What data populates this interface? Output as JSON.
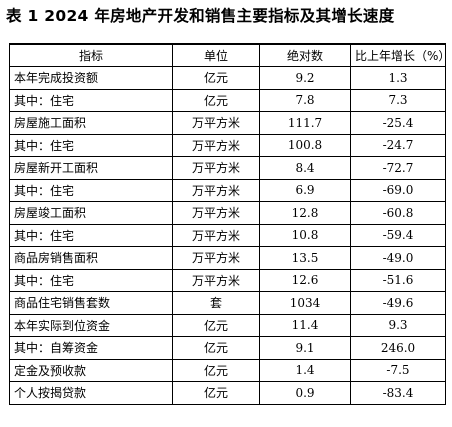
{
  "title": "表 1  2024 年房地产开发和销售主要指标及其增长速度",
  "headers": [
    "指标",
    "单位",
    "绝对数",
    "比上年增长（%）"
  ],
  "rows": [
    {
      "name": "本年完成投资额",
      "unit": "亿元",
      "value": "9.2",
      "growth": "1.3",
      "indent": 0
    },
    {
      "name": "其中：住宅",
      "unit": "亿元",
      "value": "7.8",
      "growth": "7.3",
      "indent": 1
    },
    {
      "name": "房屋施工面积",
      "unit": "万平方米",
      "value": "111.7",
      "growth": "-25.4",
      "indent": 0
    },
    {
      "name": "其中：住宅",
      "unit": "万平方米",
      "value": "100.8",
      "growth": "-24.7",
      "indent": 1
    },
    {
      "name": "房屋新开工面积",
      "unit": "万平方米",
      "value": "8.4",
      "growth": "-72.7",
      "indent": 0
    },
    {
      "name": "其中：住宅",
      "unit": "万平方米",
      "value": "6.9",
      "growth": "-69.0",
      "indent": 1
    },
    {
      "name": "房屋竣工面积",
      "unit": "万平方米",
      "value": "12.8",
      "growth": "-60.8",
      "indent": 0
    },
    {
      "name": "其中：住宅",
      "unit": "万平方米",
      "value": "10.8",
      "growth": "-59.4",
      "indent": 1
    },
    {
      "name": "商品房销售面积",
      "unit": "万平方米",
      "value": "13.5",
      "growth": "-49.0",
      "indent": 0
    },
    {
      "name": "其中：住宅",
      "unit": "万平方米",
      "value": "12.6",
      "growth": "-51.6",
      "indent": 1
    },
    {
      "name": "商品住宅销售套数",
      "unit": "套",
      "value": "1034",
      "growth": "-49.6",
      "indent": 0
    },
    {
      "name": "本年实际到位资金",
      "unit": "亿元",
      "value": "11.4",
      "growth": "9.3",
      "indent": 0
    },
    {
      "name": "其中：自筹资金",
      "unit": "亿元",
      "value": "9.1",
      "growth": "246.0",
      "indent": 1
    },
    {
      "name": "定金及预收款",
      "unit": "亿元",
      "value": "1.4",
      "growth": "-7.5",
      "indent": 2
    },
    {
      "name": "个人按揭贷款",
      "unit": "亿元",
      "value": "0.9",
      "growth": "-83.4",
      "indent": 2
    }
  ]
}
